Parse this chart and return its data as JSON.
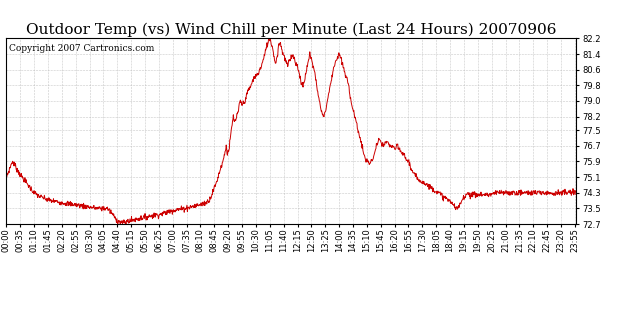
{
  "title": "Outdoor Temp (vs) Wind Chill per Minute (Last 24 Hours) 20070906",
  "copyright_text": "Copyright 2007 Cartronics.com",
  "line_color": "#cc0000",
  "background_color": "#ffffff",
  "grid_color": "#bbbbbb",
  "ylim": [
    72.7,
    82.2
  ],
  "yticks": [
    72.7,
    73.5,
    74.3,
    75.1,
    75.9,
    76.7,
    77.5,
    78.2,
    79.0,
    79.8,
    80.6,
    81.4,
    82.2
  ],
  "title_fontsize": 11,
  "copyright_fontsize": 6.5,
  "tick_fontsize": 6,
  "line_width": 0.7
}
